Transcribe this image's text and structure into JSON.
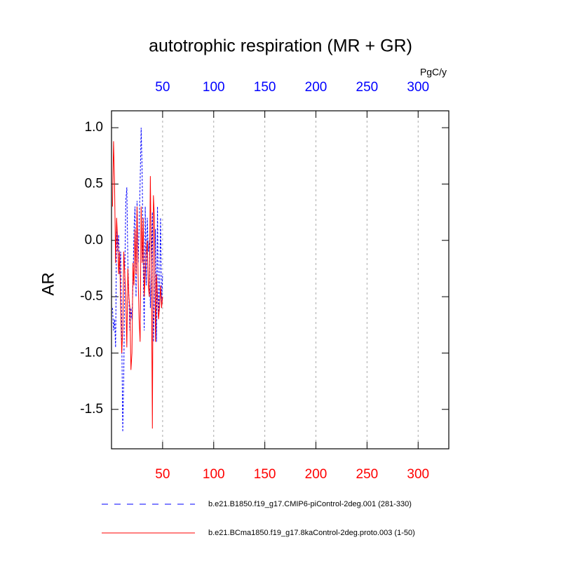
{
  "chart_data": {
    "type": "line",
    "title": "autotrophic respiration (MR + GR)",
    "ylabel": "AR",
    "x2label": "PgC/y",
    "x": [
      1,
      2,
      3,
      4,
      5,
      6,
      7,
      8,
      9,
      10,
      11,
      12,
      13,
      14,
      15,
      16,
      17,
      18,
      19,
      20,
      21,
      22,
      23,
      24,
      25,
      26,
      27,
      28,
      29,
      30,
      31,
      32,
      33,
      34,
      35,
      36,
      37,
      38,
      39,
      40,
      41,
      42,
      43,
      44,
      45,
      46,
      47,
      48,
      49,
      50
    ],
    "series": [
      {
        "name": "b.e21.B1850.f19_g17.CMIP6-piControl-2deg.001 (281-330)",
        "color": "#0000ff",
        "style": "dashed",
        "values": [
          -0.6,
          -0.8,
          -0.7,
          -0.95,
          0.1,
          -0.1,
          0.05,
          -0.3,
          -0.1,
          -0.8,
          -1.7,
          -1.2,
          -0.3,
          0.35,
          0.47,
          -0.2,
          -0.5,
          -0.8,
          -0.6,
          -0.7,
          -0.4,
          0.1,
          0.3,
          -0.5,
          0.35,
          -0.2,
          0.1,
          0.5,
          1.0,
          0.6,
          -0.2,
          -0.8,
          0.3,
          -0.4,
          0.2,
          -0.1,
          0.0,
          -0.6,
          -0.3,
          0.25,
          -0.9,
          -0.5,
          0.1,
          -0.9,
          0.3,
          -0.7,
          -0.4,
          0.2,
          -0.6,
          -0.3
        ]
      },
      {
        "name": "b.e21.BCma1850.f19_g17.8kaControl-2deg.proto.003 (1-50)",
        "color": "#ff0000",
        "style": "solid",
        "values": [
          0.3,
          0.88,
          0.5,
          -0.2,
          0.2,
          0.0,
          -0.3,
          -0.1,
          -0.6,
          -1.0,
          -0.8,
          -0.1,
          -0.3,
          -0.5,
          -0.95,
          -0.25,
          -0.5,
          -0.6,
          -1.15,
          -1.0,
          -0.2,
          -0.4,
          0.1,
          -0.3,
          0.3,
          -0.3,
          -0.7,
          -0.9,
          0.3,
          -0.2,
          0.2,
          -0.5,
          -0.3,
          -0.1,
          0.0,
          -0.4,
          -0.5,
          0.57,
          -0.2,
          -1.67,
          0.4,
          0.2,
          -0.9,
          -0.3,
          -0.5,
          -0.7,
          -0.6,
          -0.4,
          -0.6,
          -0.5
        ]
      }
    ],
    "xlim": [
      0,
      330
    ],
    "xticks": [
      50,
      100,
      150,
      200,
      250,
      300
    ],
    "xtick_color": "#ff0000",
    "x2ticks": [
      50,
      100,
      150,
      200,
      250,
      300
    ],
    "x2tick_color": "#0000ff",
    "ylim": [
      -1.85,
      1.15
    ],
    "yticks": [
      {
        "value": 1,
        "label": "1.0"
      },
      0.5,
      {
        "value": 0,
        "label": "0.0"
      },
      -0.5,
      {
        "value": -1,
        "label": "-1.0"
      },
      -1.5
    ],
    "grid": true
  }
}
